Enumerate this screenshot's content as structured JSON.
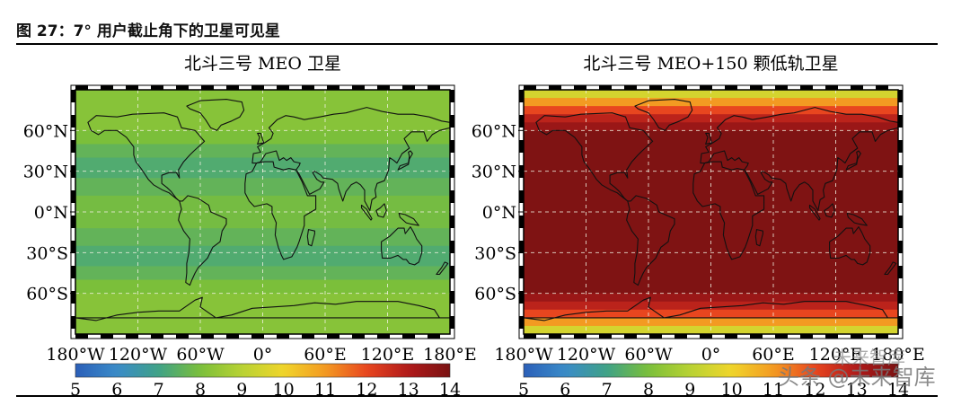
{
  "figure": {
    "title": "图 27：7° 用户截止角下的卫星可见星"
  },
  "chart_data": [
    {
      "type": "heatmap",
      "title": "北斗三号 MEO 卫星",
      "x_ticks": [
        "180°W",
        "120°W",
        "60°W",
        "0°",
        "60°E",
        "120°E",
        "180°E"
      ],
      "y_ticks": [
        "60°N",
        "30°N",
        "0°N",
        "30°S",
        "60°S"
      ],
      "xlim": [
        -180,
        180
      ],
      "ylim": [
        -90,
        90
      ],
      "colorbar_ticks": [
        "5",
        "6",
        "7",
        "8",
        "9",
        "10",
        "11",
        "12",
        "13",
        "14"
      ],
      "colorbar_range": [
        5,
        14
      ],
      "latitude_bands": [
        {
          "lat_from": 90,
          "lat_to": 60,
          "value": 8.2
        },
        {
          "lat_from": 60,
          "lat_to": 50,
          "value": 8.0
        },
        {
          "lat_from": 50,
          "lat_to": 40,
          "value": 7.6
        },
        {
          "lat_from": 40,
          "lat_to": 25,
          "value": 7.3
        },
        {
          "lat_from": 25,
          "lat_to": 12,
          "value": 7.6
        },
        {
          "lat_from": 12,
          "lat_to": -12,
          "value": 7.9
        },
        {
          "lat_from": -12,
          "lat_to": -25,
          "value": 7.6
        },
        {
          "lat_from": -25,
          "lat_to": -40,
          "value": 7.3
        },
        {
          "lat_from": -40,
          "lat_to": -50,
          "value": 7.6
        },
        {
          "lat_from": -50,
          "lat_to": -60,
          "value": 8.0
        },
        {
          "lat_from": -60,
          "lat_to": -90,
          "value": 8.2
        }
      ]
    },
    {
      "type": "heatmap",
      "title": "北斗三号 MEO+150 颗低轨卫星",
      "x_ticks": [
        "180°W",
        "120°W",
        "60°W",
        "0°",
        "60°E",
        "120°E",
        "180°E"
      ],
      "y_ticks": [
        "60°N",
        "30°N",
        "0°N",
        "30°S",
        "60°S"
      ],
      "xlim": [
        -180,
        180
      ],
      "ylim": [
        -90,
        90
      ],
      "colorbar_ticks": [
        "5",
        "6",
        "7",
        "8",
        "9",
        "10",
        "11",
        "12",
        "13",
        "14"
      ],
      "colorbar_range": [
        5,
        14
      ],
      "latitude_bands": [
        {
          "lat_from": 90,
          "lat_to": 84,
          "value": 9.5
        },
        {
          "lat_from": 84,
          "lat_to": 78,
          "value": 11.0
        },
        {
          "lat_from": 78,
          "lat_to": 72,
          "value": 12.0
        },
        {
          "lat_from": 72,
          "lat_to": 66,
          "value": 12.8
        },
        {
          "lat_from": 66,
          "lat_to": 60,
          "value": 13.4
        },
        {
          "lat_from": 60,
          "lat_to": -60,
          "value": 13.9
        },
        {
          "lat_from": -60,
          "lat_to": -66,
          "value": 13.4
        },
        {
          "lat_from": -66,
          "lat_to": -72,
          "value": 12.8
        },
        {
          "lat_from": -72,
          "lat_to": -78,
          "value": 12.0
        },
        {
          "lat_from": -78,
          "lat_to": -84,
          "value": 11.0
        },
        {
          "lat_from": -84,
          "lat_to": -90,
          "value": 9.5
        }
      ]
    }
  ],
  "colormap": [
    "#2b5fb8",
    "#3a8bc9",
    "#3fa287",
    "#7bbf3a",
    "#b8d233",
    "#f0d52b",
    "#f39a22",
    "#e8461f",
    "#b01a1a",
    "#7a1212"
  ],
  "watermark": {
    "line1": "未来智库",
    "line2": "头条 @未来智库"
  }
}
